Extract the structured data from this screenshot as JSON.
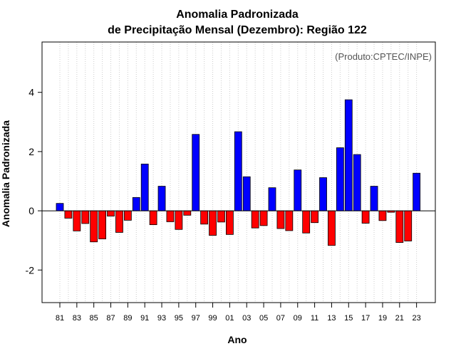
{
  "chart_data": {
    "type": "bar",
    "title": "Anomalia Padronizada",
    "subtitle": "de Precipitação Mensal (Dezembro): Região 122",
    "xlabel": "Ano",
    "ylabel": "Anomalia Padronizada",
    "credit": "(Produto:CPTEC/INPE)",
    "ylim": [
      -3.1,
      5.7
    ],
    "yticks": [
      -2,
      0,
      2,
      4
    ],
    "ytick_labels": [
      "-2",
      "0",
      "2",
      "4"
    ],
    "grid": "vertical dotted",
    "colors": {
      "positive": "#0000ff",
      "negative": "#ff0000",
      "grid": "#cccccc"
    },
    "categories": [
      "81",
      "82",
      "83",
      "84",
      "85",
      "86",
      "87",
      "88",
      "89",
      "90",
      "91",
      "92",
      "93",
      "94",
      "95",
      "96",
      "97",
      "98",
      "99",
      "00",
      "01",
      "02",
      "03",
      "04",
      "05",
      "06",
      "07",
      "08",
      "09",
      "10",
      "11",
      "12",
      "13",
      "14",
      "15",
      "16",
      "17",
      "18",
      "19",
      "20",
      "21",
      "22",
      "23"
    ],
    "tick_labels": [
      "81",
      "83",
      "85",
      "87",
      "89",
      "91",
      "93",
      "95",
      "97",
      "99",
      "01",
      "03",
      "05",
      "07",
      "09",
      "11",
      "13",
      "15",
      "17",
      "19",
      "21",
      "23"
    ],
    "values": [
      0.25,
      -0.25,
      -0.68,
      -0.43,
      -1.05,
      -0.95,
      -0.18,
      -0.73,
      -0.32,
      0.45,
      1.58,
      -0.47,
      0.83,
      -0.37,
      -0.63,
      -0.15,
      2.58,
      -0.45,
      -0.83,
      -0.38,
      -0.8,
      2.67,
      1.15,
      -0.58,
      -0.5,
      0.78,
      -0.6,
      -0.67,
      1.38,
      -0.75,
      -0.4,
      1.12,
      -1.17,
      2.13,
      3.75,
      1.9,
      -0.42,
      0.83,
      -0.33,
      -0.05,
      -1.07,
      -1.02,
      1.27
    ]
  }
}
